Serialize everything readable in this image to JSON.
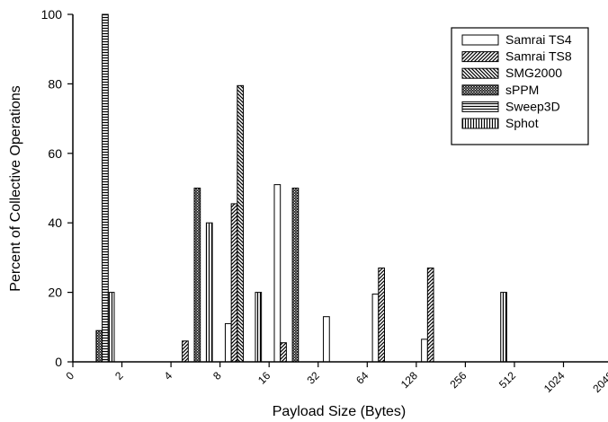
{
  "chart_data": {
    "type": "bar",
    "title": "",
    "xlabel": "Payload Size (Bytes)",
    "ylabel": "Percent of Collective Operations",
    "ylim": [
      0,
      100
    ],
    "yticks": [
      "0",
      "20",
      "40",
      "60",
      "80",
      "100"
    ],
    "categories": [
      "0",
      "2",
      "4",
      "8",
      "16",
      "32",
      "64",
      "128",
      "256",
      "512",
      "1024",
      "2048"
    ],
    "legend_position": "top-right",
    "grid": false,
    "series": [
      {
        "name": "Samrai TS4",
        "pattern": "blank",
        "values": [
          null,
          null,
          null,
          11,
          51,
          13,
          19.5,
          6.5,
          null,
          null,
          null,
          null
        ]
      },
      {
        "name": "Samrai TS8",
        "pattern": "diag-up",
        "values": [
          null,
          null,
          6,
          45.5,
          5.5,
          null,
          27,
          27,
          null,
          null,
          null,
          null
        ]
      },
      {
        "name": "SMG2000",
        "pattern": "diag-down",
        "values": [
          null,
          null,
          null,
          79.5,
          null,
          null,
          null,
          null,
          null,
          null,
          null,
          null
        ]
      },
      {
        "name": "sPPM",
        "pattern": "cross",
        "values": [
          9,
          null,
          50,
          null,
          50,
          null,
          null,
          null,
          null,
          null,
          null,
          null
        ]
      },
      {
        "name": "Sweep3D",
        "pattern": "horizontal",
        "values": [
          100,
          null,
          null,
          null,
          null,
          null,
          null,
          null,
          null,
          null,
          null,
          null
        ]
      },
      {
        "name": "Sphot",
        "pattern": "vertical",
        "values": [
          20,
          null,
          40,
          20,
          null,
          null,
          null,
          null,
          20,
          null,
          null,
          null
        ]
      }
    ]
  }
}
